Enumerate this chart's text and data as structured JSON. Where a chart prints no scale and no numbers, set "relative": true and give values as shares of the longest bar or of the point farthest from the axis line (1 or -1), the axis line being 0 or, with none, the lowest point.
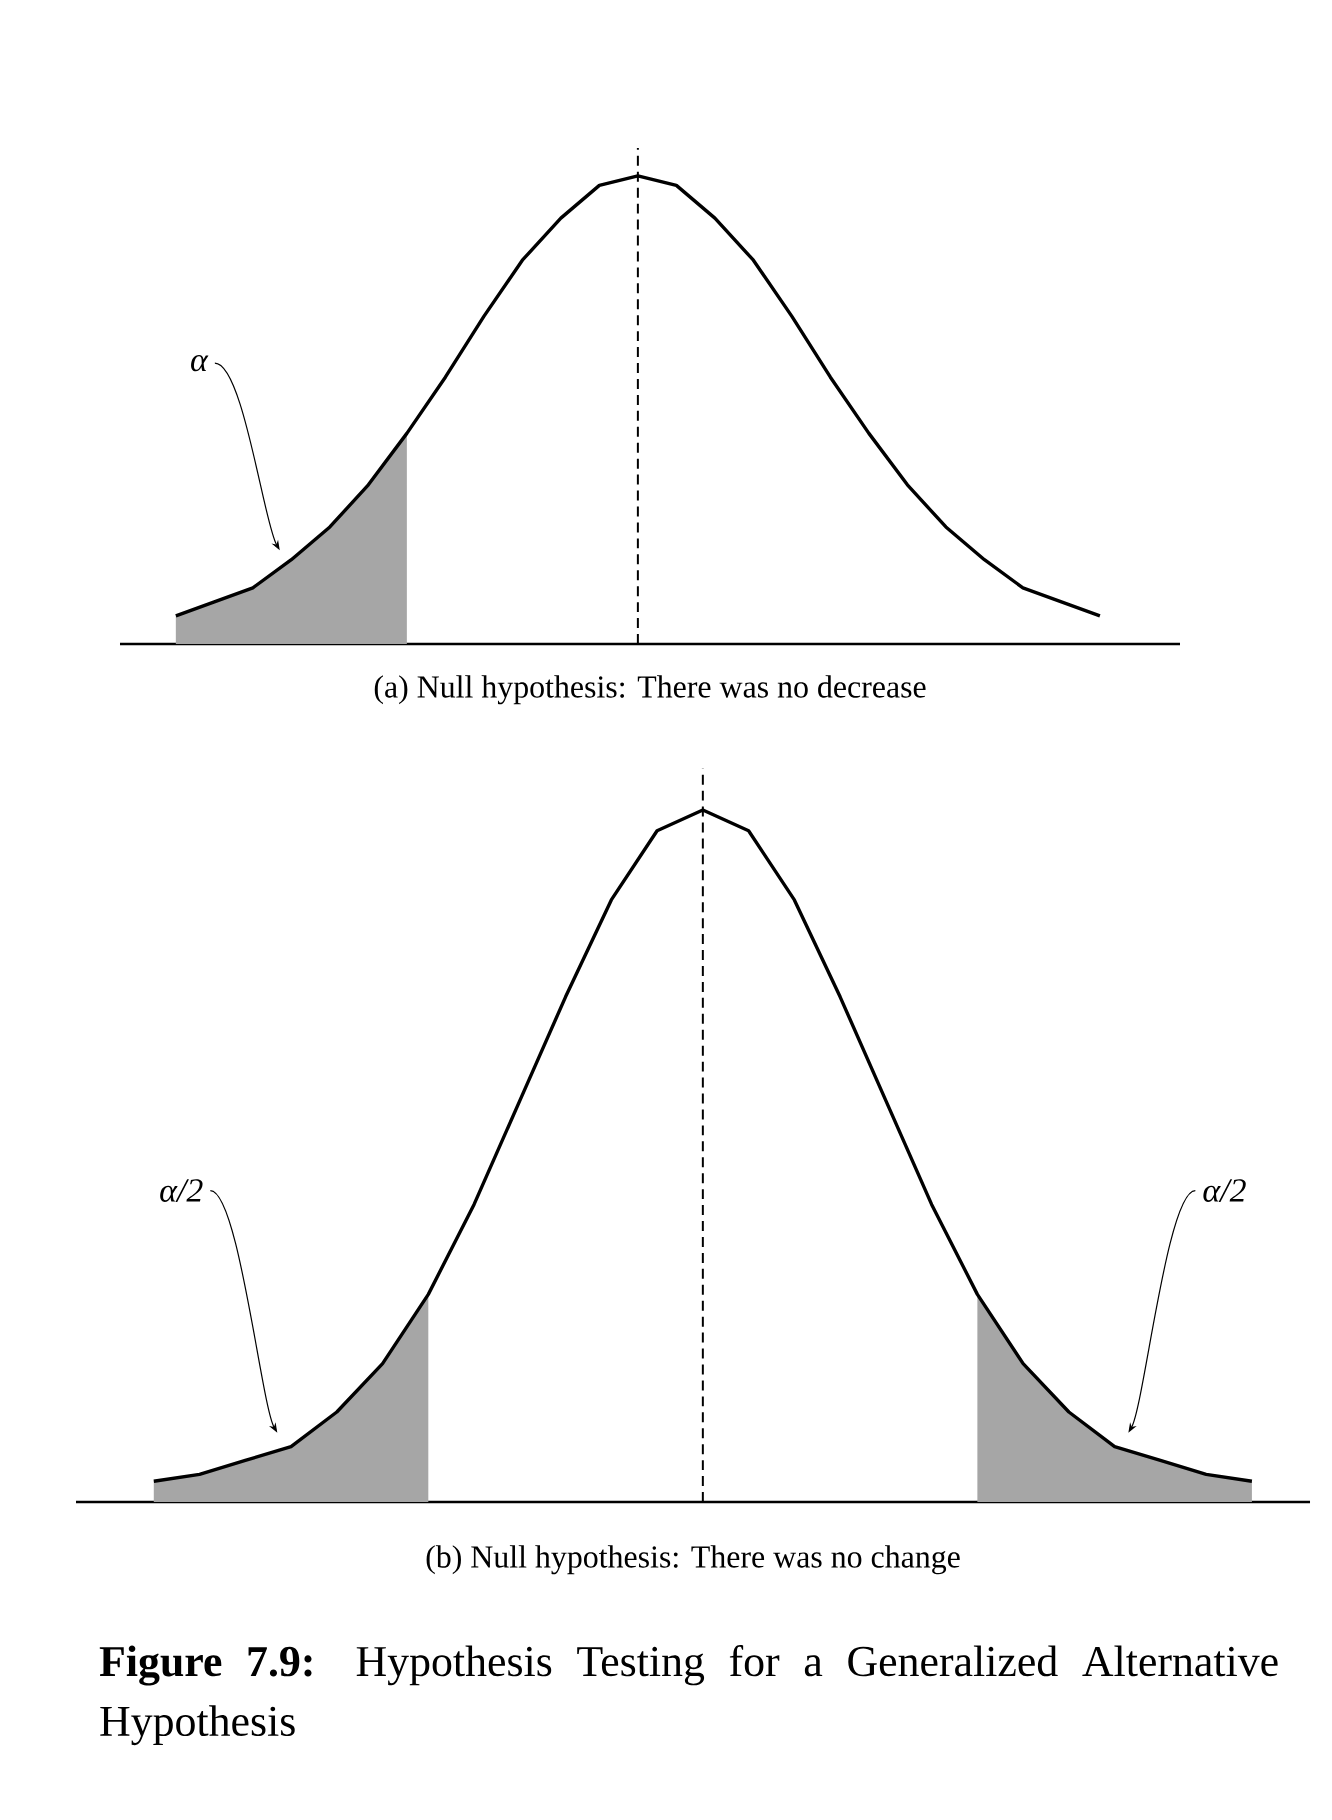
{
  "chart_data": [
    {
      "type": "line",
      "relative": true,
      "tick_labels": false,
      "xlabel": "(a) Null hypothesis: There was no decrease",
      "categories": [
        null,
        null,
        null,
        null,
        null,
        null,
        null,
        null,
        null,
        null,
        null,
        null,
        null,
        null,
        null,
        null,
        null,
        null,
        null,
        null,
        null,
        null,
        null,
        null,
        null
      ],
      "series": [
        {
          "color": "#000000",
          "line_style": "solid",
          "values": [
            0.06,
            0.09,
            0.12,
            0.18,
            0.25,
            0.34,
            0.45,
            0.57,
            0.7,
            0.82,
            0.91,
            0.98,
            1.0,
            0.98,
            0.91,
            0.82,
            0.7,
            0.57,
            0.45,
            0.34,
            0.25,
            0.18,
            0.12,
            0.09,
            0.06
          ]
        },
        {
          "type": "area",
          "color": "#a6a6a6",
          "values": [
            0.06,
            0.09,
            0.12,
            0.18,
            0.25,
            0.34,
            0.45,
            null,
            null,
            null,
            null,
            null,
            null,
            null,
            null,
            null,
            null,
            null,
            null,
            null,
            null,
            null,
            null,
            null,
            null
          ]
        }
      ],
      "annotations": [
        "α"
      ]
    },
    {
      "type": "line",
      "relative": true,
      "tick_labels": false,
      "xlabel": "(b) Null hypothesis: There was no change",
      "categories": [
        null,
        null,
        null,
        null,
        null,
        null,
        null,
        null,
        null,
        null,
        null,
        null,
        null,
        null,
        null,
        null,
        null,
        null,
        null,
        null,
        null,
        null,
        null,
        null,
        null
      ],
      "series": [
        {
          "color": "#000000",
          "line_style": "solid",
          "values": [
            0.03,
            0.04,
            0.06,
            0.08,
            0.13,
            0.2,
            0.3,
            0.43,
            0.58,
            0.73,
            0.87,
            0.97,
            1.0,
            0.97,
            0.87,
            0.73,
            0.58,
            0.43,
            0.3,
            0.2,
            0.13,
            0.08,
            0.06,
            0.04,
            0.03
          ]
        },
        {
          "type": "area",
          "color": "#a6a6a6",
          "values": [
            0.03,
            0.04,
            0.06,
            0.08,
            0.13,
            0.2,
            0.3,
            null,
            null,
            null,
            null,
            null,
            null,
            null,
            null,
            null,
            null,
            null,
            null,
            null,
            null,
            null,
            null,
            null,
            null
          ]
        },
        {
          "type": "area",
          "color": "#a6a6a6",
          "values": [
            null,
            null,
            null,
            null,
            null,
            null,
            null,
            null,
            null,
            null,
            null,
            null,
            null,
            null,
            null,
            null,
            null,
            null,
            0.3,
            0.2,
            0.13,
            0.08,
            0.06,
            0.04,
            0.03
          ]
        }
      ],
      "annotations": [
        "α/2",
        "α/2",
        "**Figure 7.9:** Hypothesis Testing for a Generalized Alternative Hypothesis"
      ]
    }
  ]
}
